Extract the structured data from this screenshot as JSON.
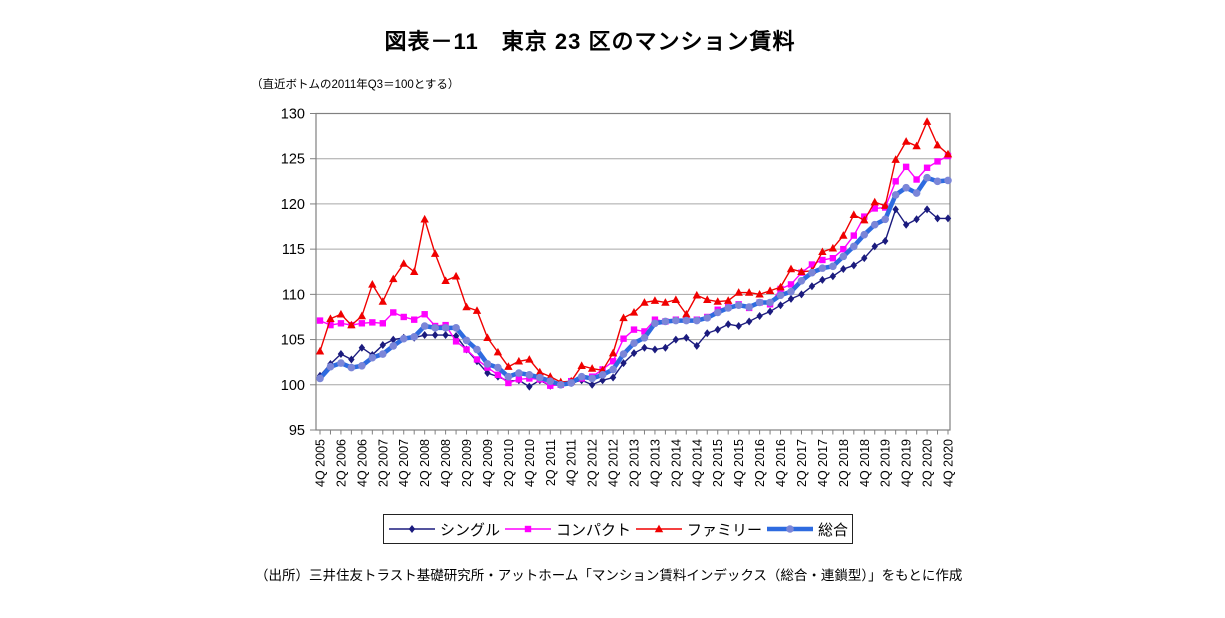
{
  "title": "図表－11　東京 23 区のマンション賃料",
  "subtitle": "（直近ボトムの2011年Q3＝100とする）",
  "source": "（出所）三井住友トラスト基礎研究所・アットホーム「マンション賃料インデックス（総合・連鎖型）」をもとに作成",
  "chart_data": {
    "type": "line",
    "title": "図表－11　東京 23 区のマンション賃料",
    "note": "（直近ボトムの2011年Q3＝100とする）",
    "x_description": "quarters from 4Q 2005 to 4Q 2020, one data point per quarter (61 points), labels shown every second quarter",
    "x_tick_labels": [
      "4Q 2005",
      "2Q 2006",
      "4Q 2006",
      "2Q 2007",
      "4Q 2007",
      "2Q 2008",
      "4Q 2008",
      "2Q 2009",
      "4Q 2009",
      "2Q 2010",
      "4Q 2010",
      "2Q 2011",
      "4Q 2011",
      "2Q 2012",
      "4Q 2012",
      "2Q 2013",
      "4Q 2013",
      "2Q 2014",
      "4Q 2014",
      "2Q 2015",
      "4Q 2015",
      "2Q 2016",
      "4Q 2016",
      "2Q 2017",
      "4Q 2017",
      "2Q 2018",
      "4Q 2018",
      "2Q 2019",
      "4Q 2019",
      "2Q 2020",
      "4Q 2020"
    ],
    "y_ticks": [
      95,
      100,
      105,
      110,
      115,
      120,
      125,
      130
    ],
    "ylim": [
      95,
      130
    ],
    "grid": true,
    "legend_position": "bottom",
    "series": [
      {
        "name": "シングル",
        "color": "#1b1b7e",
        "marker": "diamond",
        "marker_color": "#1b1b7e",
        "line_width": 1.4,
        "values": [
          101.0,
          102.3,
          103.4,
          102.8,
          104.1,
          103.3,
          104.4,
          105.0,
          105.2,
          105.2,
          105.5,
          105.5,
          105.5,
          105.4,
          103.9,
          102.6,
          101.3,
          100.9,
          100.4,
          100.5,
          99.8,
          100.5,
          99.9,
          100.1,
          100.2,
          100.5,
          100.0,
          100.5,
          100.8,
          102.4,
          103.5,
          104.1,
          103.9,
          104.1,
          105.0,
          105.2,
          104.3,
          105.7,
          106.1,
          106.7,
          106.5,
          107.0,
          107.6,
          108.1,
          108.8,
          109.5,
          110.0,
          110.9,
          111.6,
          112.0,
          112.8,
          113.2,
          114.0,
          115.3,
          115.9,
          119.4,
          117.7,
          118.3,
          119.4,
          118.4,
          118.4
        ]
      },
      {
        "name": "コンパクト",
        "color": "#ff00ff",
        "marker": "square",
        "marker_color": "#ff00ff",
        "line_width": 1.4,
        "values": [
          107.1,
          106.6,
          106.8,
          106.6,
          106.8,
          106.9,
          106.8,
          108.0,
          107.5,
          107.2,
          107.8,
          106.5,
          106.6,
          104.8,
          103.9,
          102.8,
          101.9,
          101.1,
          100.2,
          100.6,
          100.7,
          100.6,
          99.9,
          100.0,
          100.4,
          100.7,
          100.9,
          101.7,
          102.6,
          105.1,
          106.1,
          105.9,
          107.2,
          107.0,
          107.2,
          107.2,
          107.2,
          107.5,
          108.3,
          108.6,
          108.9,
          108.5,
          109.1,
          108.9,
          110.6,
          111.1,
          112.4,
          113.3,
          113.8,
          114.0,
          115.0,
          116.5,
          118.6,
          119.5,
          119.6,
          122.5,
          124.1,
          122.7,
          124.0,
          124.7,
          125.3
        ]
      },
      {
        "name": "ファミリー",
        "color": "#f00000",
        "marker": "triangle",
        "marker_color": "#f00000",
        "line_width": 1.4,
        "values": [
          103.7,
          107.3,
          107.8,
          106.6,
          107.6,
          111.1,
          109.2,
          111.7,
          113.4,
          112.5,
          118.3,
          114.5,
          111.5,
          112.0,
          108.6,
          108.2,
          105.2,
          103.6,
          102.0,
          102.6,
          102.8,
          101.4,
          100.9,
          100.3,
          100.4,
          102.1,
          101.8,
          101.6,
          103.5,
          107.4,
          108.0,
          109.1,
          109.3,
          109.1,
          109.4,
          107.8,
          109.9,
          109.4,
          109.2,
          109.3,
          110.2,
          110.2,
          110.0,
          110.4,
          110.8,
          112.8,
          112.5,
          112.6,
          114.7,
          115.1,
          116.5,
          118.8,
          118.2,
          120.2,
          119.8,
          124.9,
          126.9,
          126.4,
          129.1,
          126.5,
          125.5
        ]
      },
      {
        "name": "総合",
        "color": "#2e6be0",
        "marker": "circle",
        "marker_color": "#7b86d8",
        "line_width": 4.5,
        "values": [
          100.7,
          102.0,
          102.4,
          101.9,
          102.1,
          103.0,
          103.4,
          104.3,
          105.1,
          105.3,
          106.5,
          106.3,
          106.3,
          106.3,
          104.9,
          103.9,
          102.3,
          101.9,
          100.9,
          101.3,
          101.1,
          100.8,
          100.4,
          100.0,
          100.2,
          100.9,
          100.7,
          101.1,
          101.7,
          103.4,
          104.6,
          105.2,
          106.8,
          107.0,
          107.1,
          107.1,
          107.1,
          107.4,
          108.0,
          108.5,
          108.8,
          108.6,
          109.1,
          109.1,
          109.9,
          110.3,
          111.5,
          112.4,
          112.9,
          113.1,
          114.2,
          115.3,
          116.6,
          117.7,
          118.3,
          121.0,
          121.8,
          121.2,
          122.9,
          122.5,
          122.6
        ]
      }
    ]
  },
  "style": {
    "grid_color": "#a6a6a6",
    "axis_color": "#808080",
    "text_color": "#000000"
  }
}
